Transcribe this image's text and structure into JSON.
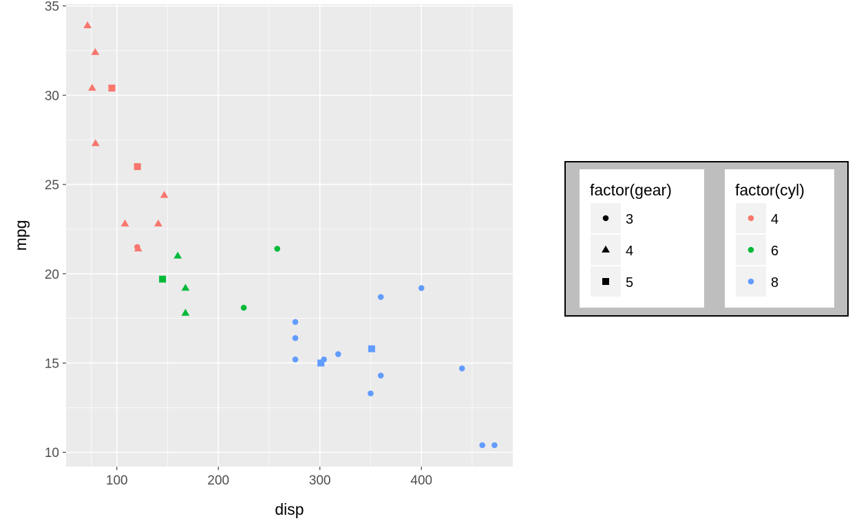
{
  "chart_data": {
    "type": "scatter",
    "title": "",
    "xlabel": "disp",
    "ylabel": "mpg",
    "xlim": [
      50,
      490
    ],
    "ylim": [
      9.2,
      35.1
    ],
    "x_ticks": [
      100,
      200,
      300,
      400
    ],
    "y_ticks": [
      10,
      15,
      20,
      25,
      30,
      35
    ],
    "grid": true,
    "legend_placement": "right",
    "colors": {
      "panel_bg": "#EBEBEB",
      "grid_major": "#FFFFFF",
      "axis_text": "#4D4D4D",
      "legend_box_bg": "#BEBEBE",
      "legend_panel_bg": "#FFFFFF",
      "legend_key_bg": "#F2F2F2"
    },
    "legends": [
      {
        "title": "factor(gear)",
        "kind": "shape",
        "entries": [
          {
            "label": "3",
            "shape": "circle"
          },
          {
            "label": "4",
            "shape": "triangle"
          },
          {
            "label": "5",
            "shape": "square"
          }
        ]
      },
      {
        "title": "factor(cyl)",
        "kind": "color",
        "entries": [
          {
            "label": "4",
            "color": "#F8766D"
          },
          {
            "label": "6",
            "color": "#00BA38"
          },
          {
            "label": "8",
            "color": "#619CFF"
          }
        ]
      }
    ],
    "points": [
      {
        "x": 71.1,
        "y": 33.9,
        "cyl": "4",
        "gear": "4"
      },
      {
        "x": 78.7,
        "y": 32.4,
        "cyl": "4",
        "gear": "4"
      },
      {
        "x": 75.7,
        "y": 30.4,
        "cyl": "4",
        "gear": "4"
      },
      {
        "x": 95.1,
        "y": 30.4,
        "cyl": "4",
        "gear": "5"
      },
      {
        "x": 79.0,
        "y": 27.3,
        "cyl": "4",
        "gear": "4"
      },
      {
        "x": 120.3,
        "y": 26.0,
        "cyl": "4",
        "gear": "5"
      },
      {
        "x": 146.7,
        "y": 24.4,
        "cyl": "4",
        "gear": "4"
      },
      {
        "x": 108.0,
        "y": 22.8,
        "cyl": "4",
        "gear": "4"
      },
      {
        "x": 140.8,
        "y": 22.8,
        "cyl": "4",
        "gear": "4"
      },
      {
        "x": 120.1,
        "y": 21.5,
        "cyl": "4",
        "gear": "3"
      },
      {
        "x": 121.0,
        "y": 21.4,
        "cyl": "4",
        "gear": "4"
      },
      {
        "x": 160.0,
        "y": 21.0,
        "cyl": "6",
        "gear": "4"
      },
      {
        "x": 258.0,
        "y": 21.4,
        "cyl": "6",
        "gear": "3"
      },
      {
        "x": 145.0,
        "y": 19.7,
        "cyl": "6",
        "gear": "5"
      },
      {
        "x": 167.6,
        "y": 19.2,
        "cyl": "6",
        "gear": "4"
      },
      {
        "x": 225.0,
        "y": 18.1,
        "cyl": "6",
        "gear": "3"
      },
      {
        "x": 167.6,
        "y": 17.8,
        "cyl": "6",
        "gear": "4"
      },
      {
        "x": 400.0,
        "y": 19.2,
        "cyl": "8",
        "gear": "3"
      },
      {
        "x": 360.0,
        "y": 18.7,
        "cyl": "8",
        "gear": "3"
      },
      {
        "x": 275.8,
        "y": 17.3,
        "cyl": "8",
        "gear": "3"
      },
      {
        "x": 275.8,
        "y": 16.4,
        "cyl": "8",
        "gear": "3"
      },
      {
        "x": 351.0,
        "y": 15.8,
        "cyl": "8",
        "gear": "5"
      },
      {
        "x": 318.0,
        "y": 15.5,
        "cyl": "8",
        "gear": "3"
      },
      {
        "x": 275.8,
        "y": 15.2,
        "cyl": "8",
        "gear": "3"
      },
      {
        "x": 304.0,
        "y": 15.2,
        "cyl": "8",
        "gear": "3"
      },
      {
        "x": 301.0,
        "y": 15.0,
        "cyl": "8",
        "gear": "5"
      },
      {
        "x": 440.0,
        "y": 14.7,
        "cyl": "8",
        "gear": "3"
      },
      {
        "x": 360.0,
        "y": 14.3,
        "cyl": "8",
        "gear": "3"
      },
      {
        "x": 350.0,
        "y": 13.3,
        "cyl": "8",
        "gear": "3"
      },
      {
        "x": 460.0,
        "y": 10.4,
        "cyl": "8",
        "gear": "3"
      },
      {
        "x": 472.0,
        "y": 10.4,
        "cyl": "8",
        "gear": "3"
      }
    ]
  }
}
